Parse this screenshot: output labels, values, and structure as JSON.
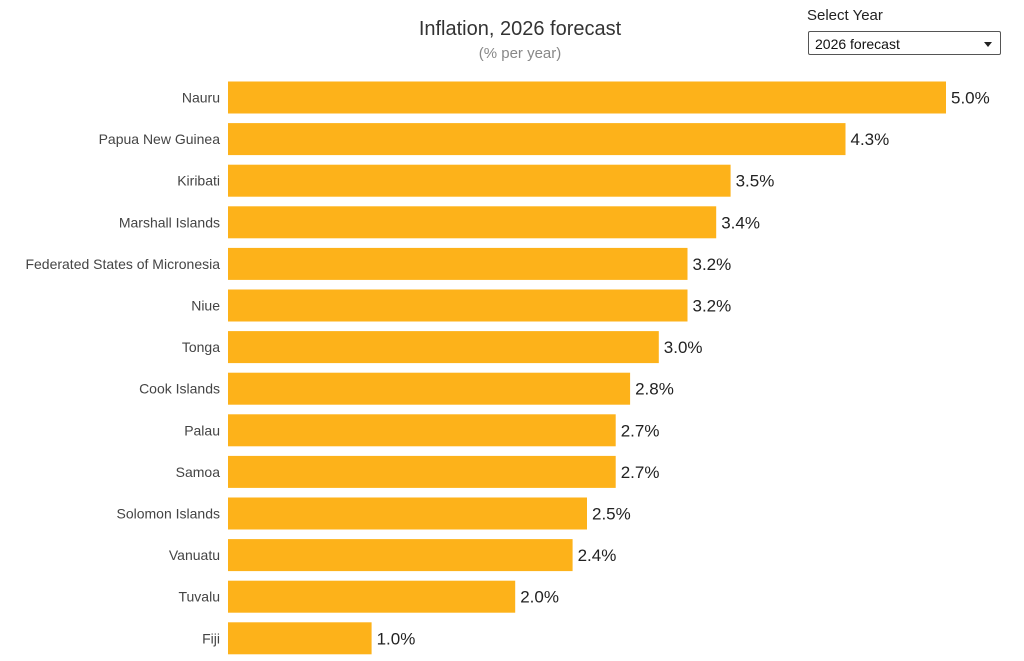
{
  "chart_data": {
    "type": "bar",
    "orientation": "horizontal",
    "title": "Inflation, 2026 forecast",
    "subtitle": "(% per year)",
    "categories": [
      "Nauru",
      "Papua New Guinea",
      "Kiribati",
      "Marshall Islands",
      "Federated States of Micronesia",
      "Niue",
      "Tonga",
      "Cook Islands",
      "Palau",
      "Samoa",
      "Solomon Islands",
      "Vanuatu",
      "Tuvalu",
      "Fiji"
    ],
    "values": [
      5.0,
      4.3,
      3.5,
      3.4,
      3.2,
      3.2,
      3.0,
      2.8,
      2.7,
      2.7,
      2.5,
      2.4,
      2.0,
      1.0
    ],
    "value_labels": [
      "5.0%",
      "4.3%",
      "3.5%",
      "3.4%",
      "3.2%",
      "3.2%",
      "3.0%",
      "2.8%",
      "2.7%",
      "2.7%",
      "2.5%",
      "2.4%",
      "2.0%",
      "1.0%"
    ],
    "bar_color": "#FDB21A",
    "grid": false,
    "legend": "none"
  },
  "controls": {
    "select_year_label": "Select Year",
    "selected_year": "2026 forecast"
  }
}
